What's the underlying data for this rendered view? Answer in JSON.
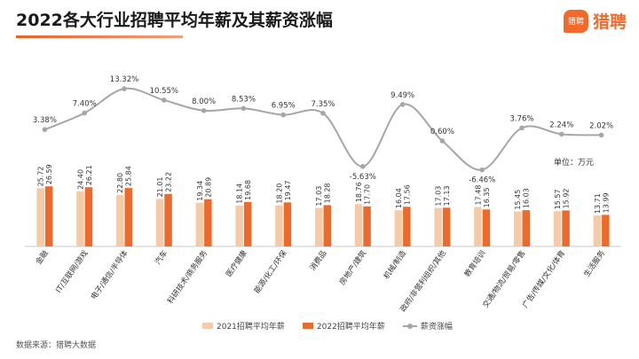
{
  "title": "2022各大行业招聘平均年薪及其薪资涨幅",
  "logo": {
    "badge": "猎聘",
    "text": "猎聘"
  },
  "unit_label": "单位：万元",
  "source": "数据来源：猎聘大数据",
  "colors": {
    "series2021": "#f5cba7",
    "series2022": "#ed6a2c",
    "growth": "#a6a6a6",
    "accent": "#f06a2b"
  },
  "chart_data": {
    "type": "bar",
    "categories": [
      "金融",
      "IT/互联网/游戏",
      "电子/通信/半导体",
      "汽车",
      "科研技术/商务服务",
      "医疗健康",
      "能源/化工/环保",
      "消费品",
      "房地产/建筑",
      "机械/制造",
      "政府/非营利组织/其他",
      "教育培训",
      "交通/物流/贸易/零售",
      "广告/传媒/文化/体育",
      "生活服务"
    ],
    "series": [
      {
        "name": "2021招聘平均年薪",
        "values": [
          25.72,
          24.4,
          22.8,
          21.01,
          19.34,
          18.14,
          18.2,
          17.03,
          18.76,
          16.04,
          17.03,
          17.48,
          15.45,
          15.57,
          13.71
        ]
      },
      {
        "name": "2022招聘平均年薪",
        "values": [
          26.59,
          26.21,
          25.84,
          23.22,
          20.89,
          19.68,
          19.47,
          18.28,
          17.7,
          17.56,
          17.13,
          16.35,
          16.03,
          15.92,
          13.99
        ]
      }
    ],
    "line_series": {
      "name": "薪资涨幅",
      "values": [
        3.38,
        7.4,
        13.32,
        10.55,
        8.0,
        8.53,
        6.95,
        7.35,
        -5.63,
        9.49,
        0.6,
        -6.46,
        3.76,
        2.24,
        2.02
      ],
      "labels": [
        "3.38%",
        "7.40%",
        "13.32%",
        "10.55%",
        "8.00%",
        "8.53%",
        "6.95%",
        "7.35%",
        "-5.63%",
        "9.49%",
        "0.60%",
        "-6.46%",
        "3.76%",
        "2.24%",
        "2.02%"
      ]
    },
    "bar_labels": {
      "2021": [
        "25.72",
        "24.40",
        "22.80",
        "21.01",
        "19.34",
        "18.14",
        "18.20",
        "17.03",
        "18.76",
        "16.04",
        "17.03",
        "17.48",
        "15.45",
        "15.57",
        "13.71"
      ],
      "2022": [
        "26.59",
        "26.21",
        "25.84",
        "23.22",
        "20.89",
        "19.68",
        "19.47",
        "18.28",
        "17.70",
        "17.56",
        "17.13",
        "16.35",
        "16.03",
        "15.92",
        "13.99"
      ]
    },
    "ylim_bars": [
      0,
      60
    ],
    "ylim_line": [
      -18,
      22
    ],
    "legend_position": "bottom",
    "grid": false
  }
}
